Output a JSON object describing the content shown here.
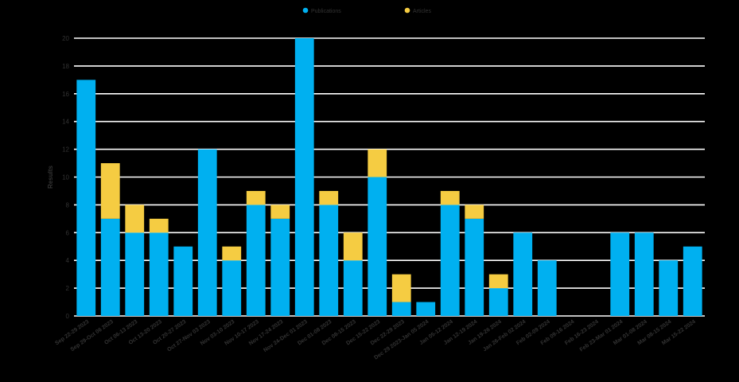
{
  "chart_data": {
    "type": "bar",
    "stacked": true,
    "title": "",
    "xlabel": "",
    "ylabel": "Results",
    "ylim": [
      0,
      20
    ],
    "yticks": [
      0,
      2,
      4,
      6,
      8,
      10,
      12,
      14,
      16,
      18,
      20
    ],
    "grid": true,
    "legend_position": "top",
    "categories": [
      "Sep 22-29 2023",
      "Sep 29-Oct 06 2023",
      "Oct 06-13 2023",
      "Oct 13-20 2023",
      "Oct 20-27 2023",
      "Oct 27-Nov 03 2023",
      "Nov 03-10 2023",
      "Nov 10-17 2023",
      "Nov 17-24 2023",
      "Nov 24-Dec 01 2023",
      "Dec 01-08 2023",
      "Dec 08-15 2023",
      "Dec 15-22 2023",
      "Dec 22-29 2023",
      "Dec 29 2023-Jan 05 2024",
      "Jan 05-12 2024",
      "Jan 12-19 2024",
      "Jan 19-26 2024",
      "Jan 26-Feb 02 2024",
      "Feb 02-09 2024",
      "Feb 09-16 2024",
      "Feb 16-23 2024",
      "Feb 23-Mar 01 2024",
      "Mar 01-08 2024",
      "Mar 08-15 2024",
      "Mar 15-22 2024"
    ],
    "series": [
      {
        "name": "Publications",
        "color": "#00b0f0",
        "values": [
          17,
          7,
          6,
          6,
          5,
          12,
          4,
          8,
          7,
          20,
          8,
          4,
          10,
          1,
          1,
          8,
          7,
          2,
          6,
          4,
          0,
          0,
          6,
          6,
          4,
          5
        ]
      },
      {
        "name": "Articles",
        "color": "#f5cc42",
        "values": [
          0,
          4,
          2,
          1,
          0,
          0,
          1,
          1,
          1,
          0,
          1,
          2,
          2,
          2,
          0,
          1,
          1,
          1,
          0,
          0,
          0,
          0,
          0,
          0,
          0,
          0
        ]
      }
    ]
  }
}
